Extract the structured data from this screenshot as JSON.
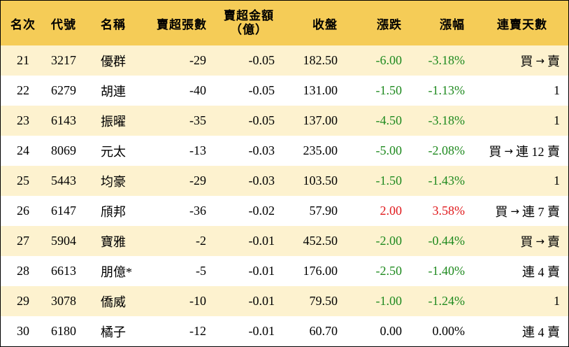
{
  "headers": {
    "rank": "名次",
    "code": "代號",
    "name": "名稱",
    "lots": "賣超張數",
    "amount_line1": "賣超金額",
    "amount_line2": "（億）",
    "close": "收盤",
    "change": "漲跌",
    "pct": "漲幅",
    "days": "連賣天數"
  },
  "colors": {
    "header_bg": "#f5cc57",
    "stripe_bg": "#fdf2cf",
    "down": "#1f8a1f",
    "up": "#e0191c"
  },
  "rows": [
    {
      "rank": "21",
      "code": "3217",
      "name": "優群",
      "lots": "-29",
      "amount": "-0.05",
      "close": "182.50",
      "change": "-6.00",
      "pct": "-3.18%",
      "days_pre": "買",
      "days_arrow": "→",
      "days_post": "賣",
      "trend": "down"
    },
    {
      "rank": "22",
      "code": "6279",
      "name": "胡連",
      "lots": "-40",
      "amount": "-0.05",
      "close": "131.00",
      "change": "-1.50",
      "pct": "-1.13%",
      "days_pre": "",
      "days_arrow": "",
      "days_post": "1",
      "trend": "down"
    },
    {
      "rank": "23",
      "code": "6143",
      "name": "振曜",
      "lots": "-35",
      "amount": "-0.05",
      "close": "137.00",
      "change": "-4.50",
      "pct": "-3.18%",
      "days_pre": "",
      "days_arrow": "",
      "days_post": "1",
      "trend": "down"
    },
    {
      "rank": "24",
      "code": "8069",
      "name": "元太",
      "lots": "-13",
      "amount": "-0.03",
      "close": "235.00",
      "change": "-5.00",
      "pct": "-2.08%",
      "days_pre": "買",
      "days_arrow": "→",
      "days_post": "連 12 賣",
      "trend": "down"
    },
    {
      "rank": "25",
      "code": "5443",
      "name": "均豪",
      "lots": "-29",
      "amount": "-0.03",
      "close": "103.50",
      "change": "-1.50",
      "pct": "-1.43%",
      "days_pre": "",
      "days_arrow": "",
      "days_post": "1",
      "trend": "down"
    },
    {
      "rank": "26",
      "code": "6147",
      "name": "頎邦",
      "lots": "-36",
      "amount": "-0.02",
      "close": "57.90",
      "change": "2.00",
      "pct": "3.58%",
      "days_pre": "買",
      "days_arrow": "→",
      "days_post": "連 7 賣",
      "trend": "up"
    },
    {
      "rank": "27",
      "code": "5904",
      "name": "寶雅",
      "lots": "-2",
      "amount": "-0.01",
      "close": "452.50",
      "change": "-2.00",
      "pct": "-0.44%",
      "days_pre": "買",
      "days_arrow": "→",
      "days_post": "賣",
      "trend": "down"
    },
    {
      "rank": "28",
      "code": "6613",
      "name": "朋億*",
      "lots": "-5",
      "amount": "-0.01",
      "close": "176.00",
      "change": "-2.50",
      "pct": "-1.40%",
      "days_pre": "",
      "days_arrow": "",
      "days_post": "連 4 賣",
      "trend": "down"
    },
    {
      "rank": "29",
      "code": "3078",
      "name": "僑威",
      "lots": "-10",
      "amount": "-0.01",
      "close": "79.50",
      "change": "-1.00",
      "pct": "-1.24%",
      "days_pre": "",
      "days_arrow": "",
      "days_post": "1",
      "trend": "down"
    },
    {
      "rank": "30",
      "code": "6180",
      "name": "橘子",
      "lots": "-12",
      "amount": "-0.01",
      "close": "60.70",
      "change": "0.00",
      "pct": "0.00%",
      "days_pre": "",
      "days_arrow": "",
      "days_post": "連 4 賣",
      "trend": "flat"
    }
  ]
}
